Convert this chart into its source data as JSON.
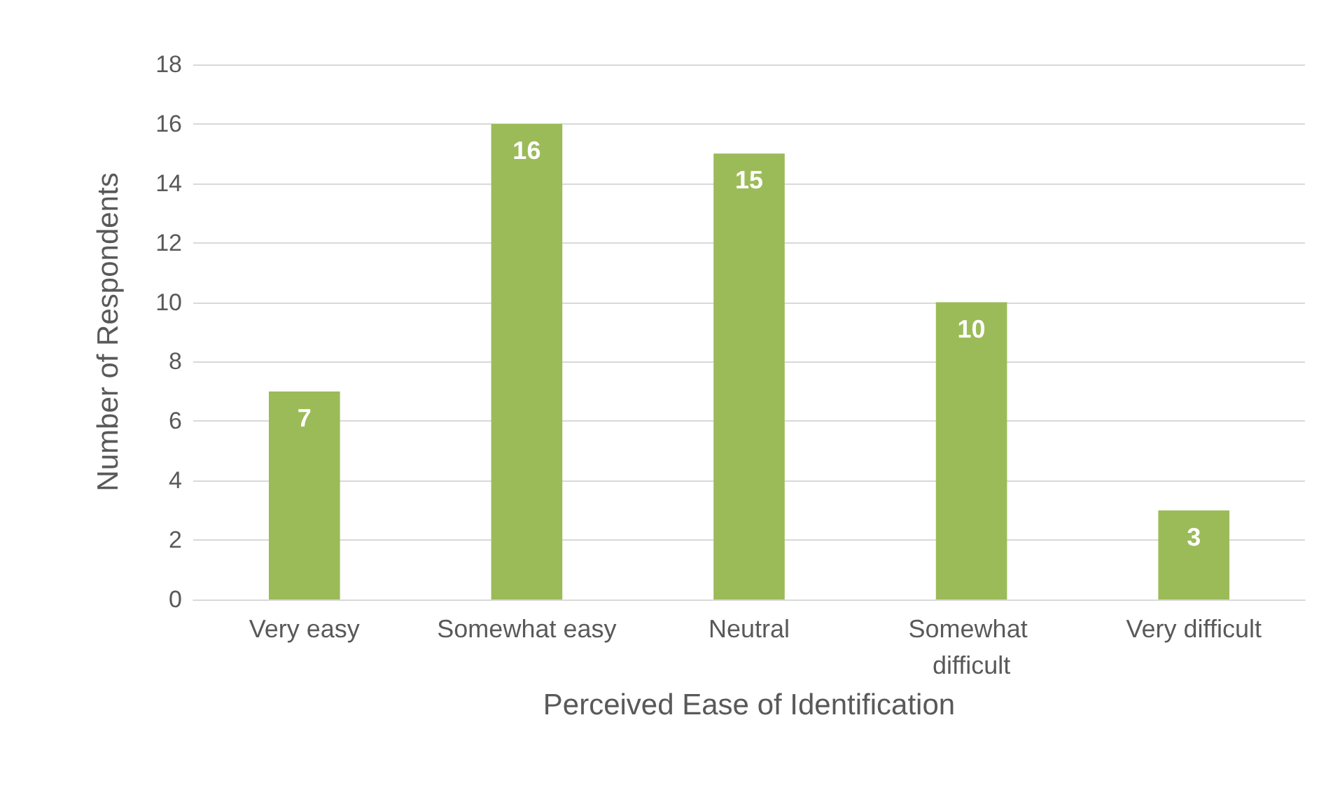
{
  "chart_data": {
    "type": "bar",
    "xlabel": "Perceived Ease of Identification",
    "ylabel": "Number of Respondents",
    "categories": [
      "Very easy",
      "Somewhat easy",
      "Neutral",
      "Somewhat difficult",
      "Very difficult"
    ],
    "values": [
      7,
      16,
      15,
      10,
      3
    ],
    "color": "#9bbb59",
    "ylim": [
      0,
      18
    ],
    "yticks": [
      0,
      2,
      4,
      6,
      8,
      10,
      12,
      14,
      16,
      18
    ],
    "grid": "y",
    "data_labels": true
  }
}
